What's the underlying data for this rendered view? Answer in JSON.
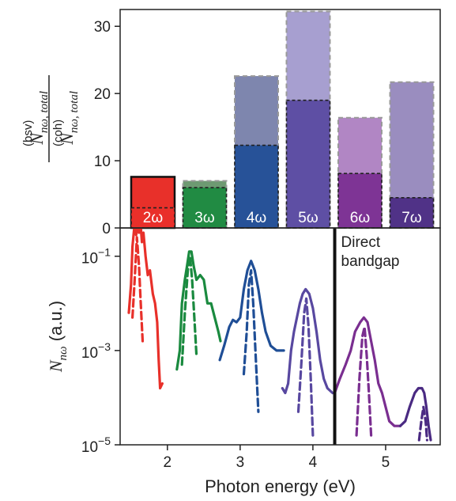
{
  "chart_data": [
    {
      "type": "bar",
      "categories": [
        "2ω",
        "3ω",
        "4ω",
        "5ω",
        "6ω",
        "7ω"
      ],
      "series": [
        {
          "values": [
            3.0,
            6.0,
            12.3,
            19.0,
            8.1,
            4.5
          ]
        },
        {
          "values": [
            7.6,
            7.0,
            22.6,
            32.2,
            16.4,
            21.7
          ]
        }
      ],
      "colors_solid": [
        "#e8302a",
        "#1a8a3f",
        "#1f4e96",
        "#5848a0",
        "#7a2e90",
        "#4a2a82"
      ],
      "colors_light": [
        "#e8302a",
        "#6e9a72",
        "#7e86ae",
        "#a79fd0",
        "#b186c4",
        "#9a8dbf"
      ],
      "ylabel_top": "N",
      "ylabel_top_sub": "nω, total",
      "ylabel_top_sup": "(bsv)",
      "ylabel_bottom": "N",
      "ylabel_bottom_sub": "nω, total",
      "ylabel_bottom_sup": "(coh)",
      "yticks": [
        "0",
        "10",
        "20",
        "30"
      ],
      "ylim": [
        0,
        32.5
      ]
    },
    {
      "type": "line",
      "xlabel": "Photon energy (eV)",
      "ylabel_main": "N",
      "ylabel_sub": "nω",
      "ylabel_unit": " (a.u.)",
      "xticks": [
        "2",
        "3",
        "4",
        "5"
      ],
      "yticks": [
        {
          "base": "10",
          "exp": "−1"
        },
        {
          "base": "10",
          "exp": "−3"
        },
        {
          "base": "10",
          "exp": "−5"
        }
      ],
      "xlim": [
        1.35,
        5.75
      ],
      "ylog_range": [
        -5,
        -0.4
      ],
      "vline": {
        "x": 4.3,
        "label_line1": "Direct",
        "label_line2": "bandgap"
      },
      "series": [
        {
          "color": "#e8302a",
          "style": "solid",
          "x": [
            1.47,
            1.5,
            1.52,
            1.55,
            1.57,
            1.59,
            1.61,
            1.63,
            1.65,
            1.67,
            1.7,
            1.73,
            1.76,
            1.8,
            1.83,
            1.86,
            1.88,
            1.9,
            1.93
          ],
          "y": [
            -2.2,
            -1.6,
            -0.8,
            -0.3,
            -0.55,
            -0.35,
            -0.5,
            -0.3,
            -0.7,
            -0.5,
            -1.0,
            -1.4,
            -1.3,
            -1.8,
            -2.0,
            -2.4,
            -3.2,
            -3.8,
            -3.7
          ]
        },
        {
          "color": "#e8302a",
          "style": "dashed",
          "x": [
            1.52,
            1.55,
            1.58,
            1.61,
            1.63,
            1.66
          ],
          "y": [
            -2.3,
            -1.5,
            -0.6,
            -1.2,
            -1.9,
            -2.8
          ]
        },
        {
          "color": "#1a8a3f",
          "style": "solid",
          "x": [
            2.13,
            2.17,
            2.2,
            2.24,
            2.27,
            2.3,
            2.33,
            2.36,
            2.4,
            2.45,
            2.5,
            2.55,
            2.6,
            2.65,
            2.7,
            2.73
          ],
          "y": [
            -3.4,
            -3.0,
            -2.0,
            -1.5,
            -1.2,
            -0.9,
            -0.9,
            -1.2,
            -1.5,
            -1.4,
            -1.5,
            -2.0,
            -2.0,
            -2.3,
            -2.6,
            -2.8
          ]
        },
        {
          "color": "#1a8a3f",
          "style": "dashed",
          "x": [
            2.2,
            2.24,
            2.28,
            2.31,
            2.34,
            2.37,
            2.4
          ],
          "y": [
            -3.3,
            -2.2,
            -1.3,
            -1.0,
            -1.5,
            -2.3,
            -3.1
          ]
        },
        {
          "color": "#1f4e96",
          "style": "solid",
          "x": [
            2.72,
            2.78,
            2.85,
            2.9,
            2.95,
            3.0,
            3.05,
            3.1,
            3.15,
            3.2,
            3.25,
            3.3,
            3.35,
            3.42,
            3.5,
            3.6
          ],
          "y": [
            -3.2,
            -2.9,
            -2.5,
            -2.35,
            -2.4,
            -2.3,
            -1.7,
            -1.3,
            -1.1,
            -1.3,
            -1.7,
            -2.2,
            -2.6,
            -2.9,
            -3.0,
            -3.0
          ]
        },
        {
          "color": "#1f4e96",
          "style": "dashed",
          "x": [
            3.05,
            3.09,
            3.12,
            3.15,
            3.18,
            3.21,
            3.25
          ],
          "y": [
            -3.5,
            -2.6,
            -1.6,
            -1.3,
            -2.0,
            -3.0,
            -4.3
          ]
        },
        {
          "color": "#5848a0",
          "style": "solid",
          "x": [
            3.58,
            3.62,
            3.66,
            3.7,
            3.74,
            3.78,
            3.82,
            3.86,
            3.9,
            3.95,
            4.0,
            4.05,
            4.1,
            4.15,
            4.2,
            4.27
          ],
          "y": [
            -3.8,
            -3.9,
            -3.7,
            -3.0,
            -2.6,
            -2.3,
            -2.0,
            -1.8,
            -1.7,
            -1.8,
            -2.1,
            -2.6,
            -3.2,
            -3.6,
            -3.8,
            -3.9
          ]
        },
        {
          "color": "#5848a0",
          "style": "dashed",
          "x": [
            3.8,
            3.84,
            3.88,
            3.91,
            3.94,
            3.97,
            4.0
          ],
          "y": [
            -4.3,
            -3.3,
            -2.2,
            -1.9,
            -2.5,
            -3.6,
            -4.8
          ]
        },
        {
          "color": "#7a2e90",
          "style": "solid",
          "x": [
            4.3,
            4.37,
            4.45,
            4.52,
            4.58,
            4.65,
            4.7,
            4.75,
            4.8,
            4.85,
            4.9,
            4.95,
            5.0,
            5.05,
            5.12,
            5.2
          ],
          "y": [
            -3.9,
            -3.6,
            -3.3,
            -3.0,
            -2.6,
            -2.4,
            -2.3,
            -2.4,
            -2.8,
            -3.2,
            -3.7,
            -3.9,
            -4.2,
            -4.5,
            -4.6,
            -4.6
          ]
        },
        {
          "color": "#7a2e90",
          "style": "dashed",
          "x": [
            4.6,
            4.64,
            4.68,
            4.71,
            4.74,
            4.77,
            4.8
          ],
          "y": [
            -4.8,
            -3.6,
            -2.7,
            -2.5,
            -3.1,
            -3.9,
            -4.8
          ]
        },
        {
          "color": "#4a2a82",
          "style": "solid",
          "x": [
            5.2,
            5.27,
            5.33,
            5.4,
            5.45,
            5.5,
            5.53,
            5.56,
            5.59,
            5.62
          ],
          "y": [
            -4.6,
            -4.5,
            -4.2,
            -3.9,
            -3.8,
            -3.8,
            -3.9,
            -4.2,
            -4.6,
            -4.9
          ]
        },
        {
          "color": "#4a2a82",
          "style": "dashed",
          "x": [
            5.46,
            5.49,
            5.52,
            5.55,
            5.57
          ],
          "y": [
            -4.9,
            -4.5,
            -4.2,
            -4.5,
            -4.9
          ]
        }
      ]
    }
  ]
}
